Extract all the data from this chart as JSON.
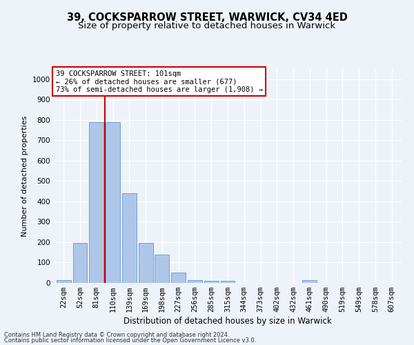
{
  "title": "39, COCKSPARROW STREET, WARWICK, CV34 4ED",
  "subtitle": "Size of property relative to detached houses in Warwick",
  "xlabel": "Distribution of detached houses by size in Warwick",
  "ylabel": "Number of detached properties",
  "categories": [
    "22sqm",
    "52sqm",
    "81sqm",
    "110sqm",
    "139sqm",
    "169sqm",
    "198sqm",
    "227sqm",
    "256sqm",
    "285sqm",
    "315sqm",
    "344sqm",
    "373sqm",
    "402sqm",
    "432sqm",
    "461sqm",
    "490sqm",
    "519sqm",
    "549sqm",
    "578sqm",
    "607sqm"
  ],
  "values": [
    15,
    195,
    790,
    790,
    440,
    195,
    140,
    50,
    15,
    10,
    10,
    0,
    0,
    0,
    0,
    15,
    0,
    0,
    0,
    0,
    0
  ],
  "bar_color": "#aec6e8",
  "bar_edge_color": "#5b9bd5",
  "vline_x": 2.5,
  "vline_color": "#cc0000",
  "annotation_text": "39 COCKSPARROW STREET: 101sqm\n← 26% of detached houses are smaller (677)\n73% of semi-detached houses are larger (1,908) →",
  "annotation_box_color": "#ffffff",
  "annotation_box_edge": "#cc0000",
  "ylim": [
    0,
    1050
  ],
  "yticks": [
    0,
    100,
    200,
    300,
    400,
    500,
    600,
    700,
    800,
    900,
    1000
  ],
  "footer1": "Contains HM Land Registry data © Crown copyright and database right 2024.",
  "footer2": "Contains public sector information licensed under the Open Government Licence v3.0.",
  "bg_color": "#eef2f9",
  "grid_color": "#ffffff",
  "title_fontsize": 10.5,
  "subtitle_fontsize": 9.5,
  "ylabel_fontsize": 8,
  "xlabel_fontsize": 8.5,
  "tick_fontsize": 7.5,
  "annotation_fontsize": 7.5,
  "footer_fontsize": 6
}
